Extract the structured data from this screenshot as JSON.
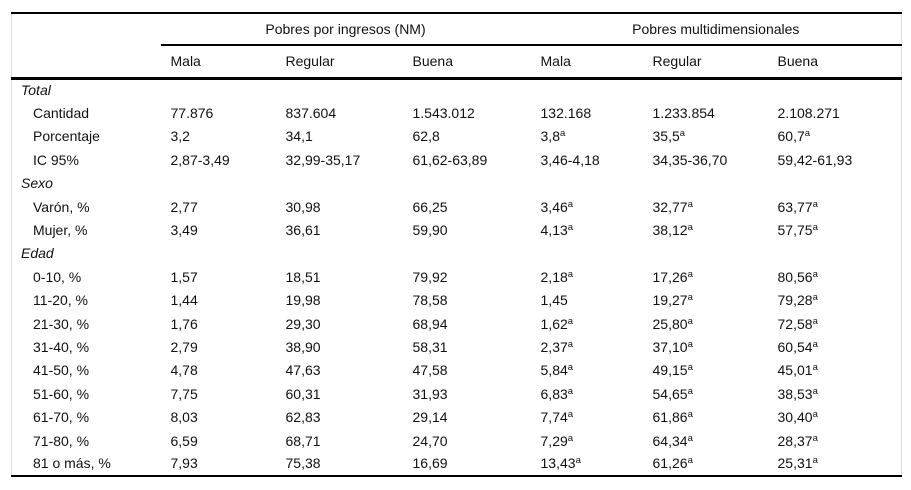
{
  "table": {
    "group_headers": [
      {
        "label": "Pobres por ingresos (NM)"
      },
      {
        "label": "Pobres multidimensionales"
      }
    ],
    "column_headers": [
      "Mala",
      "Regular",
      "Buena",
      "Mala",
      "Regular",
      "Buena"
    ],
    "footnote_marker": "a",
    "rows": [
      {
        "type": "section",
        "label": "Total"
      },
      {
        "type": "data",
        "label": "Cantidad",
        "cells": [
          {
            "v": "77.876"
          },
          {
            "v": "837.604"
          },
          {
            "v": "1.543.012"
          },
          {
            "v": "132.168"
          },
          {
            "v": "1.233.854"
          },
          {
            "v": "2.108.271"
          }
        ]
      },
      {
        "type": "data",
        "label": "Porcentaje",
        "cells": [
          {
            "v": "3,2"
          },
          {
            "v": "34,1"
          },
          {
            "v": "62,8"
          },
          {
            "v": "3,8",
            "sup": "a"
          },
          {
            "v": "35,5",
            "sup": "a"
          },
          {
            "v": "60,7",
            "sup": "a"
          }
        ]
      },
      {
        "type": "data",
        "label": "IC 95%",
        "cells": [
          {
            "v": "2,87-3,49"
          },
          {
            "v": "32,99-35,17"
          },
          {
            "v": "61,62-63,89"
          },
          {
            "v": "3,46-4,18"
          },
          {
            "v": "34,35-36,70"
          },
          {
            "v": "59,42-61,93"
          }
        ]
      },
      {
        "type": "section",
        "label": "Sexo"
      },
      {
        "type": "data",
        "label": "Varón, %",
        "cells": [
          {
            "v": "2,77"
          },
          {
            "v": "30,98"
          },
          {
            "v": "66,25"
          },
          {
            "v": "3,46",
            "sup": "a"
          },
          {
            "v": "32,77",
            "sup": "a"
          },
          {
            "v": "63,77",
            "sup": "a"
          }
        ]
      },
      {
        "type": "data",
        "label": "Mujer, %",
        "cells": [
          {
            "v": "3,49"
          },
          {
            "v": "36,61"
          },
          {
            "v": "59,90"
          },
          {
            "v": "4,13",
            "sup": "a"
          },
          {
            "v": "38,12",
            "sup": "a"
          },
          {
            "v": "57,75",
            "sup": "a"
          }
        ]
      },
      {
        "type": "section",
        "label": "Edad"
      },
      {
        "type": "data",
        "label": "0-10, %",
        "cells": [
          {
            "v": "1,57"
          },
          {
            "v": "18,51"
          },
          {
            "v": "79,92"
          },
          {
            "v": "2,18",
            "sup": "a"
          },
          {
            "v": "17,26",
            "sup": "a"
          },
          {
            "v": "80,56",
            "sup": "a"
          }
        ]
      },
      {
        "type": "data",
        "label": "11-20, %",
        "cells": [
          {
            "v": "1,44"
          },
          {
            "v": "19,98"
          },
          {
            "v": "78,58"
          },
          {
            "v": "1,45"
          },
          {
            "v": "19,27",
            "sup": "a"
          },
          {
            "v": "79,28",
            "sup": "a"
          }
        ]
      },
      {
        "type": "data",
        "label": "21-30, %",
        "cells": [
          {
            "v": "1,76"
          },
          {
            "v": "29,30"
          },
          {
            "v": "68,94"
          },
          {
            "v": "1,62",
            "sup": "a"
          },
          {
            "v": "25,80",
            "sup": "a"
          },
          {
            "v": "72,58",
            "sup": "a"
          }
        ]
      },
      {
        "type": "data",
        "label": "31-40, %",
        "cells": [
          {
            "v": "2,79"
          },
          {
            "v": "38,90"
          },
          {
            "v": "58,31"
          },
          {
            "v": "2,37",
            "sup": "a"
          },
          {
            "v": "37,10",
            "sup": "a"
          },
          {
            "v": "60,54",
            "sup": "a"
          }
        ]
      },
      {
        "type": "data",
        "label": "41-50, %",
        "cells": [
          {
            "v": "4,78"
          },
          {
            "v": "47,63"
          },
          {
            "v": "47,58"
          },
          {
            "v": "5,84",
            "sup": "a"
          },
          {
            "v": "49,15",
            "sup": "a"
          },
          {
            "v": "45,01",
            "sup": "a"
          }
        ]
      },
      {
        "type": "data",
        "label": "51-60, %",
        "cells": [
          {
            "v": "7,75"
          },
          {
            "v": "60,31"
          },
          {
            "v": "31,93"
          },
          {
            "v": "6,83",
            "sup": "a"
          },
          {
            "v": "54,65",
            "sup": "a"
          },
          {
            "v": "38,53",
            "sup": "a"
          }
        ]
      },
      {
        "type": "data",
        "label": "61-70, %",
        "cells": [
          {
            "v": "8,03"
          },
          {
            "v": "62,83"
          },
          {
            "v": "29,14"
          },
          {
            "v": "7,74",
            "sup": "a"
          },
          {
            "v": "61,86",
            "sup": "a"
          },
          {
            "v": "30,40",
            "sup": "a"
          }
        ]
      },
      {
        "type": "data",
        "label": "71-80, %",
        "cells": [
          {
            "v": "6,59"
          },
          {
            "v": "68,71"
          },
          {
            "v": "24,70"
          },
          {
            "v": "7,29",
            "sup": "a"
          },
          {
            "v": "64,34",
            "sup": "a"
          },
          {
            "v": "28,37",
            "sup": "a"
          }
        ]
      },
      {
        "type": "data",
        "label": "81 o más, %",
        "cells": [
          {
            "v": "7,93"
          },
          {
            "v": "75,38"
          },
          {
            "v": "16,69"
          },
          {
            "v": "13,43",
            "sup": "a"
          },
          {
            "v": "61,26",
            "sup": "a"
          },
          {
            "v": "25,31",
            "sup": "a"
          }
        ]
      }
    ]
  }
}
